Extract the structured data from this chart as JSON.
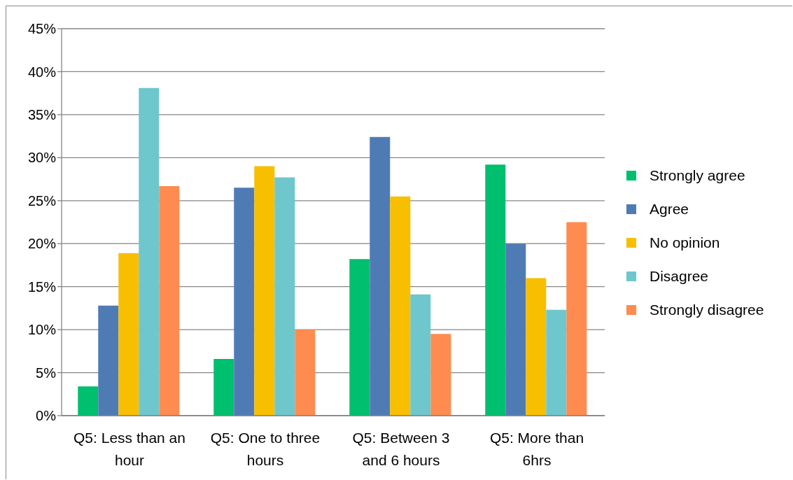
{
  "chart_data": {
    "type": "bar",
    "categories": [
      "Q5: Less than an hour",
      "Q5: One to three hours",
      "Q5: Between 3 and 6 hours",
      "Q5: More than 6hrs"
    ],
    "series": [
      {
        "name": "Strongly agree",
        "color": "#00bf6f",
        "values": [
          3.4,
          6.6,
          18.2,
          29.2
        ]
      },
      {
        "name": "Agree",
        "color": "#4f7bb5",
        "values": [
          12.8,
          26.5,
          32.4,
          20.0
        ]
      },
      {
        "name": "No opinion",
        "color": "#f8be00",
        "values": [
          18.9,
          29.0,
          25.5,
          16.0
        ]
      },
      {
        "name": "Disagree",
        "color": "#6ec7cc",
        "values": [
          38.1,
          27.7,
          14.1,
          12.3
        ]
      },
      {
        "name": "Strongly disagree",
        "color": "#ff8b50",
        "values": [
          26.7,
          10.0,
          9.5,
          22.5
        ]
      }
    ],
    "ylim": [
      0,
      45
    ],
    "yticks": [
      {
        "value": 0,
        "label": "0%"
      },
      {
        "value": 5,
        "label": "5%"
      },
      {
        "value": 10,
        "label": "10%"
      },
      {
        "value": 15,
        "label": "15%"
      },
      {
        "value": 20,
        "label": "20%"
      },
      {
        "value": 25,
        "label": "25%"
      },
      {
        "value": 30,
        "label": "30%"
      },
      {
        "value": 35,
        "label": "35%"
      },
      {
        "value": 40,
        "label": "40%"
      },
      {
        "value": 45,
        "label": "45%"
      }
    ],
    "grid": "y",
    "legend": "right"
  }
}
